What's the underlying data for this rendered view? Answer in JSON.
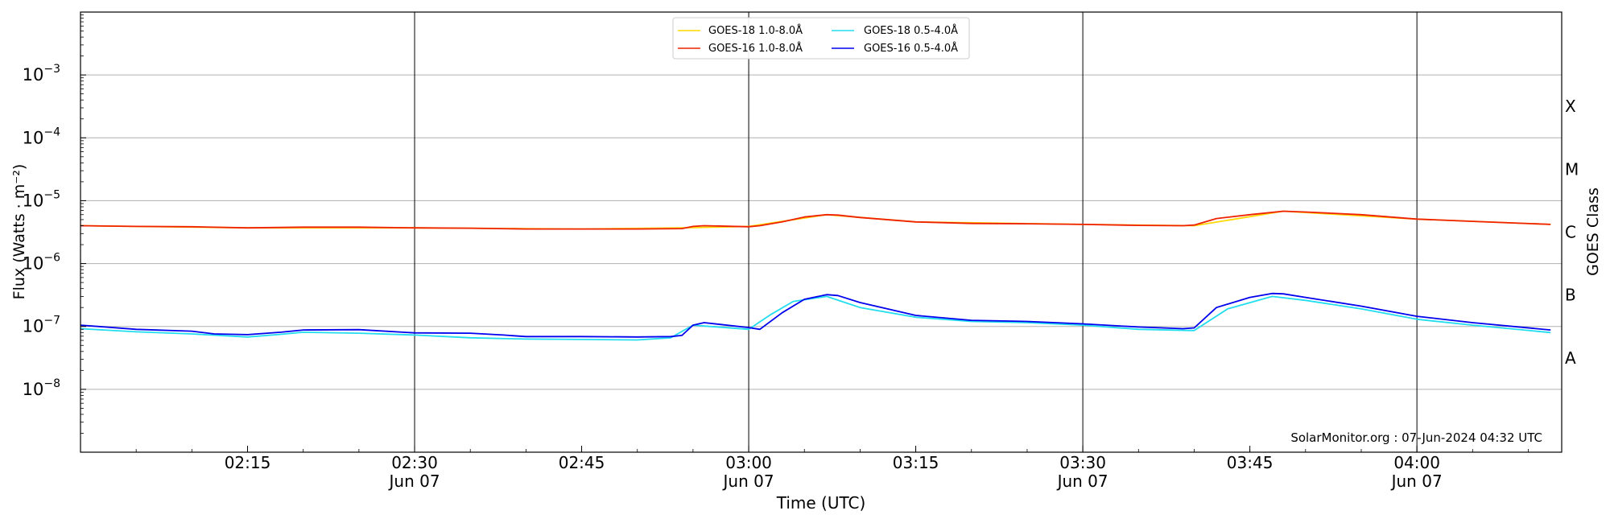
{
  "chart_data": {
    "type": "line",
    "title": "",
    "xlabel": "Time (UTC)",
    "ylabel": "Flux (Watts · m⁻²)",
    "y2label": "GOES Class",
    "yscale": "log",
    "ylim": [
      1e-09,
      0.01
    ],
    "xlim": [
      "02:00",
      "04:13"
    ],
    "yticks": [
      {
        "exp": "−8",
        "value": 1e-08
      },
      {
        "exp": "−7",
        "value": 1e-07
      },
      {
        "exp": "−6",
        "value": 1e-06
      },
      {
        "exp": "−5",
        "value": 1e-05
      },
      {
        "exp": "−4",
        "value": 0.0001
      },
      {
        "exp": "−3",
        "value": 0.001
      }
    ],
    "xticks": [
      {
        "time": "02:15",
        "date": ""
      },
      {
        "time": "02:30",
        "date": "Jun 07"
      },
      {
        "time": "02:45",
        "date": ""
      },
      {
        "time": "03:00",
        "date": "Jun 07"
      },
      {
        "time": "03:15",
        "date": ""
      },
      {
        "time": "03:30",
        "date": "Jun 07"
      },
      {
        "time": "03:45",
        "date": ""
      },
      {
        "time": "04:00",
        "date": "Jun 07"
      }
    ],
    "vlines": [
      "02:30",
      "03:00",
      "03:30",
      "04:00"
    ],
    "goes_classes": [
      {
        "label": "A",
        "value": 3.16e-08
      },
      {
        "label": "B",
        "value": 3.16e-07
      },
      {
        "label": "C",
        "value": 3.16e-06
      },
      {
        "label": "M",
        "value": 3.16e-05
      },
      {
        "label": "X",
        "value": 0.000316
      }
    ],
    "grid": "horizontal",
    "legend_position": "top-center",
    "annotation": "SolarMonitor.org : 07-Jun-2024 04:32 UTC",
    "series": [
      {
        "name": "GOES-18 1.0-8.0Å",
        "color": "#ffd700",
        "x": [
          "02:00",
          "02:15",
          "02:30",
          "02:45",
          "02:54",
          "03:00",
          "03:07",
          "03:15",
          "03:30",
          "03:40",
          "03:48",
          "04:00",
          "04:12"
        ],
        "y": [
          4e-06,
          3.7e-06,
          3.7e-06,
          3.55e-06,
          3.7e-06,
          3.9e-06,
          6e-06,
          4.6e-06,
          4.2e-06,
          4e-06,
          6.8e-06,
          5.1e-06,
          4.2e-06
        ]
      },
      {
        "name": "GOES-16 1.0-8.0Å",
        "color": "#ee2200",
        "x": [
          "02:00",
          "02:05",
          "02:10",
          "02:15",
          "02:20",
          "02:25",
          "02:30",
          "02:35",
          "02:40",
          "02:45",
          "02:50",
          "02:54",
          "02:55",
          "02:56",
          "03:00",
          "03:01",
          "03:03",
          "03:05",
          "03:07",
          "03:08",
          "03:10",
          "03:15",
          "03:20",
          "03:25",
          "03:30",
          "03:35",
          "03:39",
          "03:40",
          "03:42",
          "03:45",
          "03:48",
          "03:50",
          "03:55",
          "04:00",
          "04:05",
          "04:12"
        ],
        "y": [
          4e-06,
          3.9e-06,
          3.85e-06,
          3.7e-06,
          3.8e-06,
          3.8e-06,
          3.7e-06,
          3.65e-06,
          3.55e-06,
          3.55e-06,
          3.55e-06,
          3.6e-06,
          3.9e-06,
          4e-06,
          3.85e-06,
          4e-06,
          4.6e-06,
          5.5e-06,
          6e-06,
          5.9e-06,
          5.4e-06,
          4.6e-06,
          4.35e-06,
          4.3e-06,
          4.2e-06,
          4.05e-06,
          4e-06,
          4.1e-06,
          5.2e-06,
          6e-06,
          6.8e-06,
          6.6e-06,
          6e-06,
          5.1e-06,
          4.7e-06,
          4.2e-06
        ]
      },
      {
        "name": "GOES-18 0.5-4.0Å",
        "color": "#22ddee",
        "x": [
          "02:00",
          "02:05",
          "02:10",
          "02:15",
          "02:18",
          "02:20",
          "02:25",
          "02:30",
          "02:35",
          "02:40",
          "02:45",
          "02:50",
          "02:53",
          "02:55",
          "03:00",
          "03:02",
          "03:04",
          "03:07",
          "03:10",
          "03:15",
          "03:20",
          "03:25",
          "03:30",
          "03:35",
          "03:40",
          "03:43",
          "03:47",
          "03:50",
          "03:55",
          "04:00",
          "04:05",
          "04:12"
        ],
        "y": [
          9.2e-08,
          8.2e-08,
          7.6e-08,
          6.8e-08,
          7.5e-08,
          8.1e-08,
          7.8e-08,
          7.3e-08,
          6.6e-08,
          6.3e-08,
          6.2e-08,
          6.1e-08,
          6.6e-08,
          1.05e-07,
          9e-08,
          1.55e-07,
          2.5e-07,
          3e-07,
          2e-07,
          1.4e-07,
          1.2e-07,
          1.15e-07,
          1.05e-07,
          9e-08,
          8.6e-08,
          1.9e-07,
          3e-07,
          2.6e-07,
          1.9e-07,
          1.3e-07,
          1.05e-07,
          8e-08
        ]
      },
      {
        "name": "GOES-16 0.5-4.0Å",
        "color": "#0000ee",
        "x": [
          "02:00",
          "02:05",
          "02:10",
          "02:12",
          "02:15",
          "02:18",
          "02:20",
          "02:25",
          "02:30",
          "02:35",
          "02:38",
          "02:40",
          "02:45",
          "02:50",
          "02:53",
          "02:54",
          "02:55",
          "02:56",
          "03:00",
          "03:01",
          "03:03",
          "03:05",
          "03:07",
          "03:08",
          "03:10",
          "03:15",
          "03:20",
          "03:25",
          "03:30",
          "03:35",
          "03:39",
          "03:40",
          "03:42",
          "03:45",
          "03:47",
          "03:48",
          "03:50",
          "03:55",
          "04:00",
          "04:05",
          "04:12"
        ],
        "y": [
          1.05e-07,
          9e-08,
          8.4e-08,
          7.6e-08,
          7.4e-08,
          8.1e-08,
          8.8e-08,
          8.9e-08,
          7.9e-08,
          7.8e-08,
          7.3e-08,
          6.9e-08,
          6.9e-08,
          6.8e-08,
          6.9e-08,
          7.2e-08,
          1.05e-07,
          1.15e-07,
          9.6e-08,
          9e-08,
          1.65e-07,
          2.7e-07,
          3.2e-07,
          3.1e-07,
          2.4e-07,
          1.5e-07,
          1.25e-07,
          1.2e-07,
          1.1e-07,
          9.8e-08,
          9.2e-08,
          9.5e-08,
          2e-07,
          2.9e-07,
          3.35e-07,
          3.3e-07,
          2.9e-07,
          2.1e-07,
          1.45e-07,
          1.15e-07,
          8.8e-08
        ]
      }
    ]
  }
}
